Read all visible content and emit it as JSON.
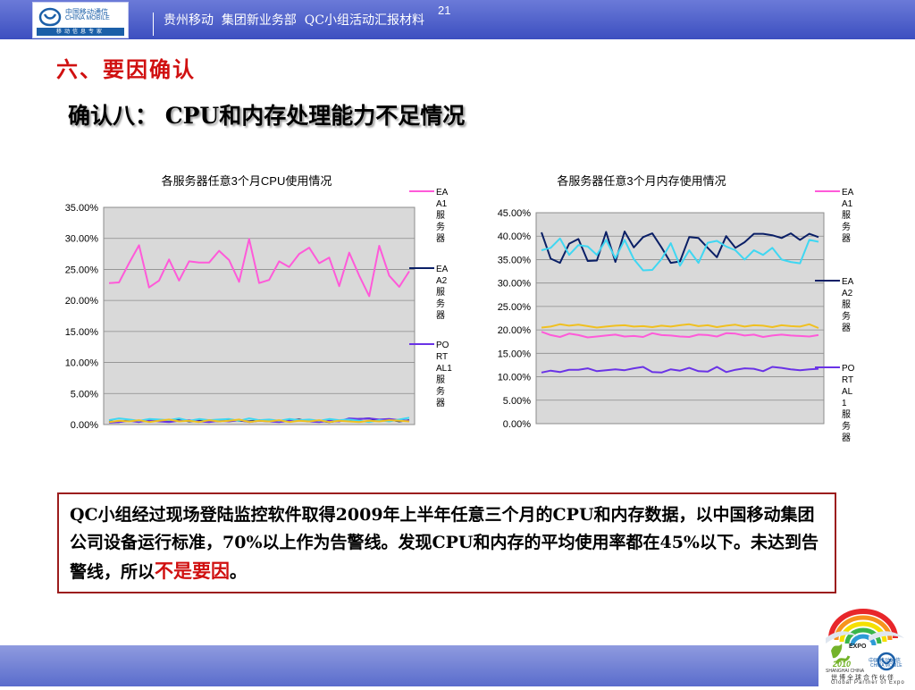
{
  "header": {
    "logo_cn": "中国移动通信",
    "logo_en": "CHINA MOBILE",
    "logo_slogan": "移动信息专家",
    "title": "贵州移动  集团新业务部  QC小组活动汇报材料",
    "page_number": "21"
  },
  "section_title": "六、要因确认",
  "subtitle": "确认八： CPU和内存处理能力不足情况",
  "colors": {
    "header_bar": "#4a5bc8",
    "title_red": "#d01010",
    "box_border": "#9c1d1d",
    "series_pink": "#ff5ad9",
    "series_navy": "#0a1f66",
    "series_purple": "#6a33e6",
    "series_cyan": "#3fd7f2",
    "series_yellow": "#f0c020",
    "plot_bg": "#d9d9d9"
  },
  "chart_data": [
    {
      "type": "line",
      "title": "各服务器任意3个月CPU使用情况",
      "ylim": [
        0,
        0.35
      ],
      "yticks": [
        "0.00%",
        "5.00%",
        "10.00%",
        "15.00%",
        "20.00%",
        "25.00%",
        "30.00%",
        "35.00%"
      ],
      "grid": true,
      "legend_position": "right",
      "legend_entries": [
        "EA\nA1\n服\n务\n器",
        "EA\nA2\n服\n务\n器",
        "PO\nRT\nAL1\n服\n务\n器"
      ],
      "series": [
        {
          "name": "EAA1服务器",
          "color": "#ff5ad9",
          "values": [
            0.228,
            0.229,
            0.26,
            0.289,
            0.221,
            0.232,
            0.266,
            0.232,
            0.263,
            0.261,
            0.261,
            0.28,
            0.265,
            0.23,
            0.299,
            0.228,
            0.233,
            0.263,
            0.254,
            0.275,
            0.285,
            0.26,
            0.269,
            0.223,
            0.277,
            0.24,
            0.207,
            0.288,
            0.24,
            0.222,
            0.247
          ]
        },
        {
          "name": "EAA2服务器",
          "color": "#0a1f66",
          "values": [
            0.005,
            0.004,
            0.007,
            0.006,
            0.005,
            0.007,
            0.006,
            0.008,
            0.005,
            0.006,
            0.007,
            0.005,
            0.008,
            0.006,
            0.005,
            0.007,
            0.006,
            0.005,
            0.007,
            0.008,
            0.005,
            0.006,
            0.004,
            0.006,
            0.007,
            0.009,
            0.01,
            0.006,
            0.008,
            0.005,
            0.007
          ]
        },
        {
          "name": "PORTAL1服务器",
          "color": "#6a33e6",
          "values": [
            0.003,
            0.004,
            0.006,
            0.004,
            0.007,
            0.005,
            0.004,
            0.006,
            0.007,
            0.005,
            0.004,
            0.006,
            0.005,
            0.007,
            0.004,
            0.006,
            0.005,
            0.004,
            0.006,
            0.007,
            0.005,
            0.004,
            0.006,
            0.005,
            0.01,
            0.009,
            0.01,
            0.008,
            0.009,
            0.007,
            0.006
          ]
        },
        {
          "name": "",
          "color": "#3fd7f2",
          "values": [
            0.007,
            0.01,
            0.008,
            0.006,
            0.009,
            0.008,
            0.007,
            0.01,
            0.006,
            0.009,
            0.007,
            0.008,
            0.009,
            0.006,
            0.01,
            0.007,
            0.008,
            0.006,
            0.009,
            0.007,
            0.008,
            0.006,
            0.009,
            0.007,
            0.008,
            0.006,
            0.004,
            0.007,
            0.005,
            0.008,
            0.011
          ]
        },
        {
          "name": "",
          "color": "#f0c020",
          "values": [
            0.004,
            0.006,
            0.005,
            0.007,
            0.004,
            0.006,
            0.008,
            0.005,
            0.006,
            0.004,
            0.007,
            0.005,
            0.006,
            0.008,
            0.004,
            0.006,
            0.005,
            0.007,
            0.004,
            0.006,
            0.005,
            0.007,
            0.004,
            0.006,
            0.005,
            0.004,
            0.006,
            0.005,
            0.007,
            0.006,
            0.005
          ]
        }
      ]
    },
    {
      "type": "line",
      "title": "各服务器任意3个月内存使用情况",
      "ylim": [
        0,
        0.45
      ],
      "yticks": [
        "0.00%",
        "5.00%",
        "10.00%",
        "15.00%",
        "20.00%",
        "25.00%",
        "30.00%",
        "35.00%",
        "40.00%",
        "45.00%"
      ],
      "grid": true,
      "legend_position": "right",
      "legend_entries": [
        "EA\nA1\n服\n务\n器",
        "EA\nA2\n服\n务\n器",
        "PO\nRT\nAL\n1\n服\n务\n器"
      ],
      "series": [
        {
          "name": "EAA1服务器",
          "color": "#ff5ad9",
          "values": [
            0.196,
            0.189,
            0.185,
            0.192,
            0.189,
            0.184,
            0.186,
            0.188,
            0.19,
            0.186,
            0.187,
            0.185,
            0.193,
            0.189,
            0.188,
            0.186,
            0.185,
            0.19,
            0.189,
            0.186,
            0.193,
            0.192,
            0.188,
            0.19,
            0.185,
            0.188,
            0.19,
            0.188,
            0.187,
            0.186,
            0.189
          ]
        },
        {
          "name": "EAA2服务器",
          "color": "#0a1f66",
          "values": [
            0.408,
            0.352,
            0.343,
            0.384,
            0.394,
            0.347,
            0.348,
            0.409,
            0.345,
            0.41,
            0.376,
            0.398,
            0.406,
            0.376,
            0.343,
            0.346,
            0.398,
            0.396,
            0.375,
            0.355,
            0.4,
            0.375,
            0.387,
            0.405,
            0.405,
            0.402,
            0.396,
            0.406,
            0.392,
            0.405,
            0.398
          ]
        },
        {
          "name": "PORTAL1服务器",
          "color": "#6a33e6",
          "values": [
            0.109,
            0.113,
            0.11,
            0.115,
            0.115,
            0.118,
            0.112,
            0.114,
            0.116,
            0.114,
            0.118,
            0.121,
            0.11,
            0.109,
            0.116,
            0.113,
            0.119,
            0.112,
            0.111,
            0.121,
            0.11,
            0.115,
            0.118,
            0.117,
            0.112,
            0.121,
            0.119,
            0.116,
            0.114,
            0.116,
            0.117
          ]
        },
        {
          "name": "",
          "color": "#3fd7f2",
          "values": [
            0.37,
            0.375,
            0.395,
            0.36,
            0.381,
            0.378,
            0.36,
            0.392,
            0.353,
            0.392,
            0.351,
            0.327,
            0.328,
            0.351,
            0.385,
            0.337,
            0.37,
            0.343,
            0.386,
            0.39,
            0.378,
            0.37,
            0.35,
            0.37,
            0.36,
            0.375,
            0.35,
            0.345,
            0.342,
            0.392,
            0.388
          ]
        },
        {
          "name": "",
          "color": "#f0c020",
          "values": [
            0.205,
            0.207,
            0.212,
            0.209,
            0.211,
            0.208,
            0.205,
            0.207,
            0.209,
            0.21,
            0.207,
            0.208,
            0.206,
            0.209,
            0.207,
            0.21,
            0.212,
            0.208,
            0.21,
            0.206,
            0.209,
            0.211,
            0.207,
            0.21,
            0.209,
            0.206,
            0.21,
            0.208,
            0.207,
            0.212,
            0.204
          ]
        }
      ]
    }
  ],
  "note": {
    "text_main": "QC小组经过现场登陆监控软件取得2009年上半年任意三个月的CPU和内存数据，以中国移动集团公司设备运行标准，70%以上作为告警线。发现CPU和内存的平均使用率都在45%以下。未达到告警线，所以",
    "emphasis": "不是要因",
    "end": "。"
  },
  "expo_logo": {
    "expo_label": "EXPO",
    "year_label": "2010",
    "shanghai_label": "SHANGHAI CHINA",
    "cm_cn": "中国移动通信",
    "cm_en": "CHINA MOBILE",
    "partner_cn": "世博全球合作伙伴",
    "partner_en": "Global Partner of Expo"
  }
}
